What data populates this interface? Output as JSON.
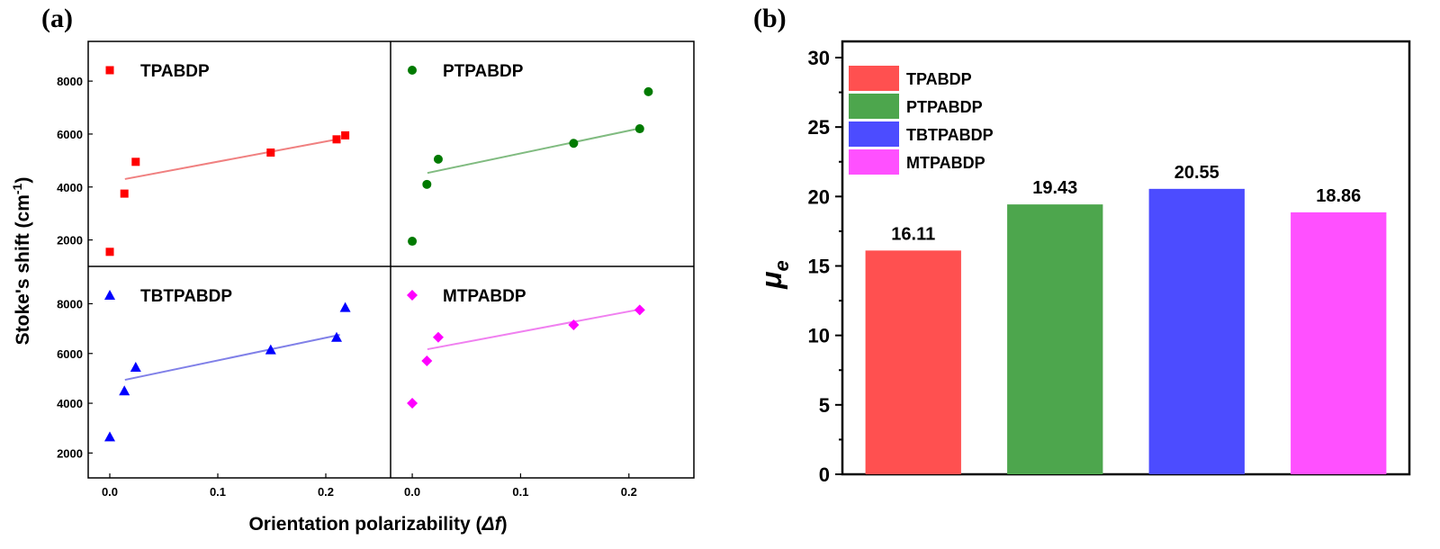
{
  "chart_data": [
    {
      "panel": "(a)",
      "type": "scatter",
      "xlabel_prefix": "Orientation polarizability (",
      "xlabel_symbol": "Δf",
      "xlabel_suffix": ")",
      "ylabel_main": "Stoke's shift (cm",
      "ylabel_sup": "-1",
      "ylabel_close": ")",
      "xlim": [
        -0.02,
        0.26
      ],
      "xticks": [
        0.0,
        0.1,
        0.2
      ],
      "xtick_labels": [
        "0.0",
        "0.1",
        "0.2"
      ],
      "ylim": [
        1000,
        9500
      ],
      "yticks": [
        2000,
        4000,
        6000,
        8000
      ],
      "ytick_labels": [
        "2000",
        "4000",
        "6000",
        "8000"
      ],
      "fit_lines": true,
      "subplots": [
        {
          "name": "TPABDP",
          "color": "#ff0000",
          "marker": "square",
          "fit_color": "#f08080",
          "x": [
            0.0,
            0.0135,
            0.024,
            0.149,
            0.21,
            0.218
          ],
          "y": [
            1550,
            3750,
            4950,
            5300,
            5800,
            5950
          ],
          "fit": [
            [
              0.014,
              4300
            ],
            [
              0.213,
              5820
            ]
          ]
        },
        {
          "name": "PTPABDP",
          "color": "#007a00",
          "marker": "circle",
          "fit_color": "#80bb80",
          "x": [
            0.0,
            0.0135,
            0.024,
            0.149,
            0.21,
            0.218
          ],
          "y": [
            1950,
            4100,
            5050,
            5650,
            6200,
            7600
          ],
          "fit": [
            [
              0.014,
              4530
            ],
            [
              0.213,
              6240
            ]
          ]
        },
        {
          "name": "TBTPABDP",
          "color": "#0000ff",
          "marker": "triangle",
          "fit_color": "#8080e8",
          "x": [
            0.0,
            0.0135,
            0.024,
            0.149,
            0.21,
            0.218
          ],
          "y": [
            2650,
            4500,
            5450,
            6150,
            6650,
            7850
          ],
          "fit": [
            [
              0.014,
              4940
            ],
            [
              0.213,
              6750
            ]
          ]
        },
        {
          "name": "MTPABDP",
          "color": "#ff00ff",
          "marker": "diamond",
          "fit_color": "#f080f0",
          "x": [
            0.0,
            0.0135,
            0.024,
            0.149,
            0.21
          ],
          "y": [
            4000,
            5700,
            6650,
            7150,
            7750
          ],
          "fit": [
            [
              0.014,
              6170
            ],
            [
              0.211,
              7780
            ]
          ]
        }
      ]
    },
    {
      "panel": "(b)",
      "type": "bar",
      "ylabel_main": "μ",
      "ylabel_sub": "e",
      "ylim": [
        0,
        30
      ],
      "yticks": [
        0,
        5,
        10,
        15,
        20,
        25,
        30
      ],
      "ytick_labels": [
        "0",
        "5",
        "10",
        "15",
        "20",
        "25",
        "30"
      ],
      "categories": [
        "TPABDP",
        "PTPABDP",
        "TBTPABDP",
        "MTPABDP"
      ],
      "values": [
        16.11,
        19.43,
        20.55,
        18.86
      ],
      "value_labels": [
        "16.11",
        "19.43",
        "20.55",
        "18.86"
      ],
      "colors": [
        "#ff5050",
        "#4da64d",
        "#4c4cff",
        "#ff50ff"
      ],
      "legend": [
        "TPABDP",
        "PTPABDP",
        "TBTPABDP",
        "MTPABDP"
      ],
      "legend_position": "top-left"
    }
  ]
}
